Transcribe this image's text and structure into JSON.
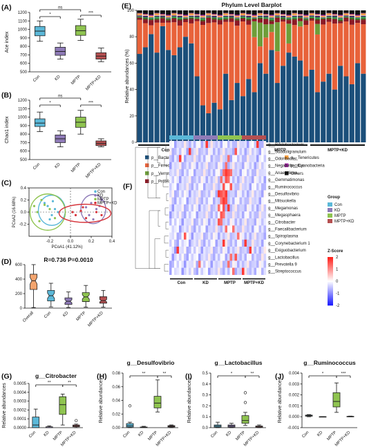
{
  "colors": {
    "Con": "#5bb8d8",
    "KD": "#8f7bb8",
    "MPTP": "#8fc450",
    "MPTP+KD": "#b54f50",
    "overall": "#f4a46e"
  },
  "chart_data": [
    {
      "id": "A",
      "panel_label": "(A)",
      "type": "box",
      "title": "",
      "ylabel": "Ace index",
      "categories": [
        "Con",
        "KD",
        "MPTP",
        "MPTP+KD"
      ],
      "ylim": [
        500,
        1200
      ],
      "yticks": [
        "500",
        "600",
        "700",
        "800",
        "900",
        "1000",
        "1100",
        "1200"
      ],
      "boxes": [
        {
          "min": 860,
          "q1": 925,
          "median": 980,
          "q3": 1035,
          "max": 1100
        },
        {
          "min": 650,
          "q1": 695,
          "median": 740,
          "q3": 790,
          "max": 840
        },
        {
          "min": 870,
          "q1": 930,
          "median": 985,
          "q3": 1045,
          "max": 1120
        },
        {
          "min": 620,
          "q1": 650,
          "median": 685,
          "q3": 725,
          "max": 780
        }
      ],
      "brackets": [
        {
          "from": 0,
          "to": 1,
          "label": "*"
        },
        {
          "from": 0,
          "to": 2,
          "label": "ns"
        },
        {
          "from": 2,
          "to": 3,
          "label": "***"
        }
      ]
    },
    {
      "id": "B",
      "panel_label": "(B)",
      "type": "box",
      "title": "",
      "ylabel": "Chao1 index",
      "categories": [
        "Con",
        "KD",
        "MPTP",
        "MPTP+KD"
      ],
      "ylim": [
        500,
        1200
      ],
      "yticks": [
        "500",
        "600",
        "700",
        "800",
        "900",
        "1000",
        "1100",
        "1200"
      ],
      "boxes": [
        {
          "min": 830,
          "q1": 890,
          "median": 930,
          "q3": 980,
          "max": 1060
        },
        {
          "min": 650,
          "q1": 700,
          "median": 745,
          "q3": 790,
          "max": 840
        },
        {
          "min": 800,
          "q1": 880,
          "median": 940,
          "q3": 1000,
          "max": 1080
        },
        {
          "min": 650,
          "q1": 665,
          "median": 690,
          "q3": 720,
          "max": 745
        }
      ],
      "brackets": [
        {
          "from": 0,
          "to": 1,
          "label": "*"
        },
        {
          "from": 0,
          "to": 2,
          "label": "ns"
        },
        {
          "from": 2,
          "to": 3,
          "label": "***"
        }
      ]
    },
    {
      "id": "C",
      "panel_label": "(C)",
      "type": "scatter",
      "xlabel": "PCoA1 (41.12%)",
      "ylabel": "PCoA2 (16.68%)",
      "xlim": [
        -0.4,
        0.4
      ],
      "ylim": [
        -0.4,
        0.4
      ],
      "xticks": [
        "-0.2",
        "0.0",
        "0.2",
        "0.4"
      ],
      "yticks": [
        "-0.2",
        "0.0",
        "0.2",
        "0.4"
      ],
      "legend": [
        "Con",
        "KD",
        "MPTP",
        "MPTP+KD"
      ],
      "series": [
        {
          "name": "Con",
          "ellipse": {
            "cx": -0.18,
            "cy": 0.03,
            "rx": 0.13,
            "ry": 0.25
          },
          "points": [
            [
              -0.22,
              0.1
            ],
            [
              -0.18,
              -0.05
            ],
            [
              -0.15,
              0.05
            ],
            [
              -0.2,
              -0.12
            ],
            [
              -0.12,
              0.0
            ],
            [
              -0.25,
              0.15
            ],
            [
              -0.17,
              0.18
            ]
          ]
        },
        {
          "name": "KD",
          "ellipse": {
            "cx": 0.22,
            "cy": 0.05,
            "rx": 0.12,
            "ry": 0.24
          },
          "points": [
            [
              0.2,
              0.15
            ],
            [
              0.25,
              0.05
            ],
            [
              0.18,
              -0.05
            ],
            [
              0.28,
              0.1
            ],
            [
              0.22,
              -0.12
            ],
            [
              0.3,
              0.2
            ],
            [
              0.15,
              0.08
            ]
          ]
        },
        {
          "name": "MPTP",
          "ellipse": {
            "cx": -0.22,
            "cy": 0.0,
            "rx": 0.17,
            "ry": 0.3
          },
          "points": [
            [
              -0.28,
              0.2
            ],
            [
              -0.3,
              -0.15
            ],
            [
              -0.2,
              0.05
            ],
            [
              -0.32,
              0.0
            ],
            [
              -0.15,
              -0.1
            ],
            [
              -0.25,
              0.12
            ],
            [
              -0.35,
              0.1
            ]
          ]
        },
        {
          "name": "MPTP+KD",
          "ellipse": {
            "cx": 0.14,
            "cy": -0.02,
            "rx": 0.25,
            "ry": 0.15
          },
          "points": [
            [
              0.05,
              -0.05
            ],
            [
              0.1,
              0.02
            ],
            [
              0.15,
              -0.1
            ],
            [
              0.25,
              0.0
            ],
            [
              0.12,
              0.08
            ],
            [
              0.3,
              -0.05
            ],
            [
              0.02,
              0.0
            ]
          ]
        }
      ]
    },
    {
      "id": "D",
      "panel_label": "(D)",
      "type": "box",
      "title": "R=0.736  P=0.0010",
      "ylabel": "",
      "categories": [
        "Overall",
        "Con",
        "KD",
        "MPTP",
        "MPTP+KD"
      ],
      "ylim": [
        0,
        700
      ],
      "yticks": [
        "0",
        "200",
        "400",
        "600"
      ],
      "boxes": [
        {
          "min": 10,
          "q1": 300,
          "median": 440,
          "q3": 545,
          "max": 700
        },
        {
          "min": 20,
          "q1": 115,
          "median": 200,
          "q3": 285,
          "max": 400
        },
        {
          "min": 10,
          "q1": 60,
          "median": 110,
          "q3": 165,
          "max": 260
        },
        {
          "min": 15,
          "q1": 105,
          "median": 180,
          "q3": 250,
          "max": 365
        },
        {
          "min": 15,
          "q1": 80,
          "median": 120,
          "q3": 185,
          "max": 285
        }
      ]
    },
    {
      "id": "E",
      "panel_label": "(E)",
      "type": "stacked-bar",
      "title": "Phylum Level Barplot",
      "ylabel": "Relative abundances (%)",
      "ylim": [
        0,
        100
      ],
      "yticks": [
        "0",
        "20",
        "40",
        "60",
        "80",
        "100"
      ],
      "groups": [
        "Con",
        "KD",
        "MPTP",
        "MPTP+KD"
      ],
      "n_per_group": 10,
      "layers": [
        "p__Bacteroidetes",
        "p__Verrucomicrobia",
        "p__Firmicutes",
        "p__Proteobacteria",
        "p__Actinobacteria",
        "p__Epsilonbacteraeota",
        "p__Deferribacteres",
        "p__Patescibacteria",
        "p__Tenericutes",
        "p__Cyanobacteria",
        "Others"
      ],
      "bacteroidetes": [
        67,
        72,
        82,
        68,
        88,
        70,
        66,
        72,
        80,
        75,
        50,
        28,
        22,
        30,
        25,
        52,
        32,
        45,
        35,
        48,
        38,
        60,
        52,
        70,
        45,
        58,
        68,
        65,
        62,
        50,
        55,
        38,
        46,
        52,
        40,
        58,
        50,
        44,
        60,
        52
      ],
      "verrucomicrobia": [
        0,
        0,
        0,
        0,
        0,
        0,
        0,
        0,
        0,
        0,
        0,
        0,
        0,
        0,
        0,
        0,
        0,
        0,
        0,
        0,
        12,
        18,
        10,
        6,
        22,
        0,
        15,
        0,
        4,
        0,
        0,
        8,
        0,
        0,
        0,
        0,
        0,
        0,
        0,
        0
      ],
      "legend": [
        {
          "name": "p__Bacteroidetes",
          "color": "#1b4f7a"
        },
        {
          "name": "p__Actinobacteria",
          "color": "#4a4b10"
        },
        {
          "name": "p__Tenericutes",
          "color": "#f39c3d"
        },
        {
          "name": "p__Firmicutes",
          "color": "#e8623a"
        },
        {
          "name": "p__Epsilonbacteraeota",
          "color": "#2f9a4a"
        },
        {
          "name": "p__Cyanobacteria",
          "color": "#a52aa8"
        },
        {
          "name": "p__Verrucomicrobia",
          "color": "#6e9e3a"
        },
        {
          "name": "p__Deferribacteres",
          "color": "#3c1e5e"
        },
        {
          "name": "Others",
          "color": "#111111"
        },
        {
          "name": "p__Proteobacteria",
          "color": "#8c1a26"
        },
        {
          "name": "p__Patescibacteria",
          "color": "#e8c6c6"
        }
      ]
    },
    {
      "id": "F",
      "panel_label": "(F)",
      "type": "heatmap",
      "title": "",
      "genera": [
        "g__Bifidobacterium",
        "g__Subdoligranulum",
        "g__Odoribacter",
        "g__Negativibacillus",
        "g__Anaerolinea",
        "g__Gemmatimonas",
        "g__Ruminococcus",
        "g__Desulfovibrio",
        "g__Mitsuokella",
        "g__Megamonas",
        "g__Megasphaera",
        "g__Citrobacter",
        "g__Faecalibacterium",
        "g__Spiroplasma",
        "g__Corynebacterium 1",
        "g__Exiguobacterium",
        "g__Lactobacillus",
        "g__Prevotella 9",
        "g__Streptococcus"
      ],
      "groups": [
        "Con",
        "KD",
        "MPTP",
        "MPTP+KD"
      ],
      "n_per_group": 10,
      "legend_title": "Group",
      "legend": [
        "Con",
        "KD",
        "MPTP",
        "MPTP+KD"
      ],
      "colorbar_title": "Z-Score",
      "colorbar_ticks": [
        "2",
        "1",
        "0",
        "-1",
        "-2"
      ],
      "zlim": [
        -2,
        2
      ]
    },
    {
      "id": "G",
      "panel_label": "(G)",
      "type": "box",
      "title": "g__Citrobacter",
      "ylabel": "Relative abundances",
      "categories": [
        "Con",
        "KD",
        "MPTP",
        "MPTP+KD"
      ],
      "ylim": [
        0,
        0.0005
      ],
      "yticks": [
        "0.0000",
        "0.0001",
        "0.0002",
        "0.0003",
        "0.0004",
        "0.0005"
      ],
      "boxes": [
        {
          "min": 0.0,
          "q1": 0.0,
          "median": 3e-05,
          "q3": 0.00012,
          "max": 0.00021
        },
        {
          "min": 0.0,
          "q1": 0.0,
          "median": 0.0,
          "q3": 1e-05,
          "max": 2e-05
        },
        {
          "min": 3e-05,
          "q1": 0.00015,
          "median": 0.00026,
          "q3": 0.00035,
          "max": 0.00038
        },
        {
          "min": 0.0,
          "q1": 1e-05,
          "median": 2e-05,
          "q3": 3e-05,
          "max": 4e-05
        }
      ],
      "outliers": [
        {
          "cat": 3,
          "value": 8e-05
        }
      ],
      "brackets": [
        {
          "from": 0,
          "to": 2,
          "label": "**"
        },
        {
          "from": 2,
          "to": 3,
          "label": "**"
        }
      ]
    },
    {
      "id": "H",
      "panel_label": "(H)",
      "type": "box",
      "title": "g__Desulfovibrio",
      "ylabel": "Relative abundances",
      "categories": [
        "Con",
        "KD",
        "MPTP",
        "MPTP+KD"
      ],
      "ylim": [
        0,
        0.08
      ],
      "yticks": [
        "0.00",
        "0.02",
        "0.04",
        "0.06",
        "0.08"
      ],
      "boxes": [
        {
          "min": 0.0,
          "q1": 0.001,
          "median": 0.003,
          "q3": 0.006,
          "max": 0.008
        },
        {
          "min": 0.0,
          "q1": 0.0,
          "median": 0.0005,
          "q3": 0.001,
          "max": 0.002
        },
        {
          "min": 0.023,
          "q1": 0.029,
          "median": 0.036,
          "q3": 0.046,
          "max": 0.07
        },
        {
          "min": 0.0,
          "q1": 0.001,
          "median": 0.002,
          "q3": 0.003,
          "max": 0.004
        }
      ],
      "outliers": [
        {
          "cat": 0,
          "value": 0.032
        }
      ],
      "brackets": [
        {
          "from": 0,
          "to": 2,
          "label": "**"
        },
        {
          "from": 2,
          "to": 3,
          "label": "**"
        }
      ]
    },
    {
      "id": "I",
      "panel_label": "(I)",
      "type": "box",
      "title": "g__Lactobacillus",
      "ylabel": "Relative abundances",
      "categories": [
        "Con",
        "KD",
        "MPTP",
        "MPTP+KD"
      ],
      "ylim": [
        0,
        0.5
      ],
      "yticks": [
        "0.0",
        "0.1",
        "0.2",
        "0.3",
        "0.4",
        "0.5"
      ],
      "boxes": [
        {
          "min": 0.0,
          "q1": 0.005,
          "median": 0.015,
          "q3": 0.025,
          "max": 0.05
        },
        {
          "min": 0.0,
          "q1": 0.005,
          "median": 0.015,
          "q3": 0.025,
          "max": 0.04
        },
        {
          "min": 0.02,
          "q1": 0.04,
          "median": 0.065,
          "q3": 0.11,
          "max": 0.14
        },
        {
          "min": 0.0,
          "q1": 0.003,
          "median": 0.008,
          "q3": 0.015,
          "max": 0.025
        }
      ],
      "outliers": [
        {
          "cat": 2,
          "value": 0.23
        },
        {
          "cat": 2,
          "value": 0.32
        }
      ],
      "brackets": [
        {
          "from": 0,
          "to": 2,
          "label": "*"
        },
        {
          "from": 2,
          "to": 3,
          "label": "**"
        }
      ]
    },
    {
      "id": "J",
      "panel_label": "(J)",
      "type": "box",
      "title": "g__Ruminococcus",
      "ylabel": "Relative abundances",
      "categories": [
        "Con",
        "KD",
        "MPTP",
        "MPTP+KD"
      ],
      "ylim": [
        -0.001,
        0.004
      ],
      "yticks": [
        "-0.001",
        "0.000",
        "0.001",
        "0.002",
        "0.003",
        "0.004"
      ],
      "boxes": [
        {
          "min": 0.0,
          "q1": 5e-05,
          "median": 0.0001,
          "q3": 0.00015,
          "max": 0.0002
        },
        {
          "min": 0.0,
          "q1": 0.0,
          "median": 0.0,
          "q3": 1e-05,
          "max": 2e-05
        },
        {
          "min": 0.0004,
          "q1": 0.0009,
          "median": 0.0014,
          "q3": 0.0022,
          "max": 0.0031
        },
        {
          "min": 0.0,
          "q1": 1e-05,
          "median": 2e-05,
          "q3": 4e-05,
          "max": 6e-05
        }
      ],
      "brackets": [
        {
          "from": 0,
          "to": 2,
          "label": "*"
        },
        {
          "from": 2,
          "to": 3,
          "label": "***"
        }
      ]
    }
  ]
}
